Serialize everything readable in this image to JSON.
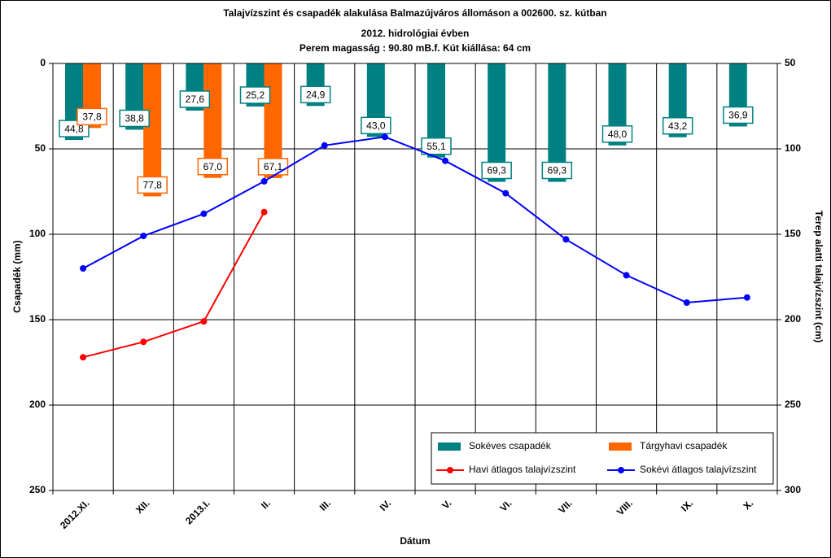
{
  "chart_data": {
    "type": "bar_line",
    "title": "Talajvízszint és csapadék alakulása Balmazújváros állomáson  a 002600. sz. kútban",
    "subtitle": "2012. hidrológiai évben",
    "subtitle2": "Perem magasság : 90.80 mB.f.  Kút kiállása: 64 cm",
    "xlabel": "Dátum",
    "ylabel": "Csapadék (mm)",
    "y2label": "Terep alatti talajvízszint (cm)",
    "categories": [
      "2012.XI.",
      "XII.",
      "2013.I.",
      "II.",
      "III.",
      "IV.",
      "V.",
      "VI.",
      "VII.",
      "VIII.",
      "IX.",
      "X."
    ],
    "series": [
      {
        "name": "Sokéves csapadék",
        "kind": "bar",
        "color": "#008080",
        "values": [
          44.8,
          38.8,
          27.6,
          25.2,
          24.9,
          43.0,
          55.1,
          69.3,
          69.3,
          48.0,
          43.2,
          36.9
        ],
        "value_labels": [
          "44,8",
          "38,8",
          "27,6",
          "25,2",
          "24,9",
          "43,0",
          "55,1",
          "69,3",
          "69,3",
          "48,0",
          "43,2",
          "36,9"
        ]
      },
      {
        "name": "Tárgyhavi csapadék",
        "kind": "bar",
        "color": "#ff6600",
        "values": [
          37.8,
          77.8,
          67.0,
          67.1,
          null,
          null,
          null,
          null,
          null,
          null,
          null,
          null
        ],
        "value_labels": [
          "37,8",
          "77,8",
          "67,0",
          "67,1",
          null,
          null,
          null,
          null,
          null,
          null,
          null,
          null
        ]
      },
      {
        "name": "Havi átlagos talajvízszint",
        "kind": "line",
        "axis": "y2",
        "color": "#ff0000",
        "values": [
          222,
          213,
          201,
          137,
          null,
          null,
          null,
          null,
          null,
          null,
          null,
          null
        ]
      },
      {
        "name": "Sokévi átlagos talajvízszint",
        "kind": "line",
        "axis": "y2",
        "color": "#0000ff",
        "values": [
          170,
          151,
          138,
          119,
          98,
          93,
          107,
          126,
          153,
          174,
          190,
          187
        ]
      }
    ],
    "ylim": [
      250,
      0
    ],
    "yticks": [
      0,
      50,
      100,
      150,
      200,
      250
    ],
    "y2lim": [
      300,
      50
    ],
    "y2ticks": [
      50,
      100,
      150,
      200,
      250,
      300
    ],
    "grid": true,
    "legend": "lower right"
  }
}
